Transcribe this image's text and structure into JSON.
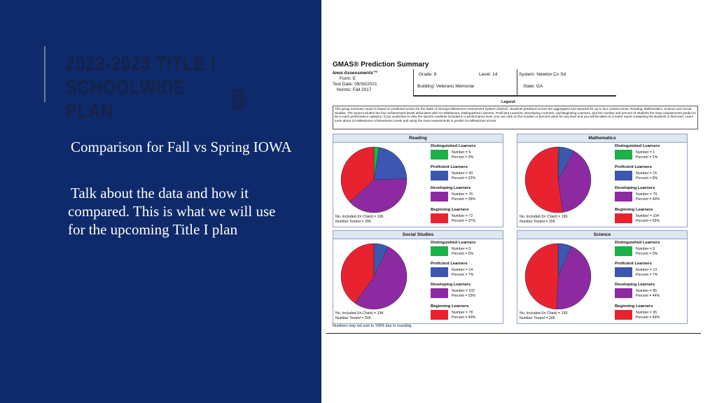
{
  "slide": {
    "title_line1": "2022-2023 Title I",
    "title_line2": "Schoolwide Plan",
    "title_icon": "document-icon",
    "bullets": [
      "Comparison for Fall vs Spring IOWA",
      "Talk about the data and how it compared. This is what we will use for the upcoming Title I plan"
    ],
    "colors": {
      "left_panel": "#0e2a6b",
      "title_text": "#152347"
    }
  },
  "report": {
    "title": "GMAS® Prediction Summary",
    "assessment": "Iowa Assessments™",
    "form": "Form:  E",
    "test_date": "Test Date:  09/30/2021",
    "norms": "Norms:  Fall 2017",
    "grade": "Grade:  8",
    "level": "Level:  14",
    "building": "Building:  Veterans Memorial",
    "system": "System:  Newton Co Sd",
    "state": "State:  GA",
    "legend_title": "Legend",
    "legend_text": "This group summary report is based on predicted scores for the State of Georgia Milestones Assessment System (GMAS). Students predicted scores are aggregated and reported for up to four content areas: Reading, Mathematics, Science and Social Studies. The report includes the four achievement levels associated with GA Milestones: Distinguished Learners, Proficient Learners, Developing Learners, and Beginning Learners, and the number and percent of students the Iowa Assessments predict to be in each performance category. If you would like to view the specific students included in a performance level, you can click on the number or percent value for any level and you will be taken to a roster report containing the students in that level. Learn more about GA Milestones Achievement Levels and using the Iowa Assessments to predict GA Milestones scores.",
    "footnote": "Numbers may not sum to 100% due to rounding",
    "category_colors": [
      "#1bb24a",
      "#3d56b0",
      "#8e2aa1",
      "#e8232f"
    ],
    "panels": [
      {
        "subject": "Reading",
        "included": "No. Included (In Chart) = 196",
        "tested": "Number Tested = 206",
        "categories": [
          {
            "name": "Distinguished Learners",
            "number": "Number = 5",
            "percent": "Percent = 3%"
          },
          {
            "name": "Proficient Learners",
            "number": "Number = 43",
            "percent": "Percent = 22%"
          },
          {
            "name": "Developing Learners",
            "number": "Number = 76",
            "percent": "Percent = 39%"
          },
          {
            "name": "Beginning Learners",
            "number": "Number = 72",
            "percent": "Percent = 37%"
          }
        ],
        "values": [
          5,
          43,
          76,
          72
        ]
      },
      {
        "subject": "Mathematics",
        "included": "No. Included (In Chart) = 199",
        "tested": "Number Tested = 206",
        "categories": [
          {
            "name": "Distinguished Learners",
            "number": "Number = 1",
            "percent": "Percent = 1%"
          },
          {
            "name": "Proficient Learners",
            "number": "Number = 15",
            "percent": "Percent = 8%"
          },
          {
            "name": "Developing Learners",
            "number": "Number = 79",
            "percent": "Percent = 40%"
          },
          {
            "name": "Beginning Learners",
            "number": "Number = 104",
            "percent": "Percent = 52%"
          }
        ],
        "values": [
          1,
          15,
          79,
          104
        ]
      },
      {
        "subject": "Social Studies",
        "included": "No. Included (In Chart) = 194",
        "tested": "Number Tested = 206",
        "categories": [
          {
            "name": "Distinguished Learners",
            "number": "Number = 0",
            "percent": "Percent = 0%"
          },
          {
            "name": "Proficient Learners",
            "number": "Number = 14",
            "percent": "Percent = 7%"
          },
          {
            "name": "Developing Learners",
            "number": "Number = 102",
            "percent": "Percent = 53%"
          },
          {
            "name": "Beginning Learners",
            "number": "Number = 78",
            "percent": "Percent = 40%"
          }
        ],
        "values": [
          0,
          14,
          102,
          78
        ]
      },
      {
        "subject": "Science",
        "included": "No. Included (In Chart) = 193",
        "tested": "Number Tested = 206",
        "categories": [
          {
            "name": "Distinguished Learners",
            "number": "Number = 0",
            "percent": "Percent = 0%"
          },
          {
            "name": "Proficient Learners",
            "number": "Number = 13",
            "percent": "Percent = 7%"
          },
          {
            "name": "Developing Learners",
            "number": "Number = 85",
            "percent": "Percent = 44%"
          },
          {
            "name": "Beginning Learners",
            "number": "Number = 95",
            "percent": "Percent = 49%"
          }
        ],
        "values": [
          0,
          13,
          85,
          95
        ]
      }
    ]
  },
  "chart_data": [
    {
      "type": "pie",
      "title": "Reading",
      "categories": [
        "Distinguished Learners",
        "Proficient Learners",
        "Developing Learners",
        "Beginning Learners"
      ],
      "values": [
        5,
        43,
        76,
        72
      ]
    },
    {
      "type": "pie",
      "title": "Mathematics",
      "categories": [
        "Distinguished Learners",
        "Proficient Learners",
        "Developing Learners",
        "Beginning Learners"
      ],
      "values": [
        1,
        15,
        79,
        104
      ]
    },
    {
      "type": "pie",
      "title": "Social Studies",
      "categories": [
        "Distinguished Learners",
        "Proficient Learners",
        "Developing Learners",
        "Beginning Learners"
      ],
      "values": [
        0,
        14,
        102,
        78
      ]
    },
    {
      "type": "pie",
      "title": "Science",
      "categories": [
        "Distinguished Learners",
        "Proficient Learners",
        "Developing Learners",
        "Beginning Learners"
      ],
      "values": [
        0,
        13,
        85,
        95
      ]
    }
  ]
}
